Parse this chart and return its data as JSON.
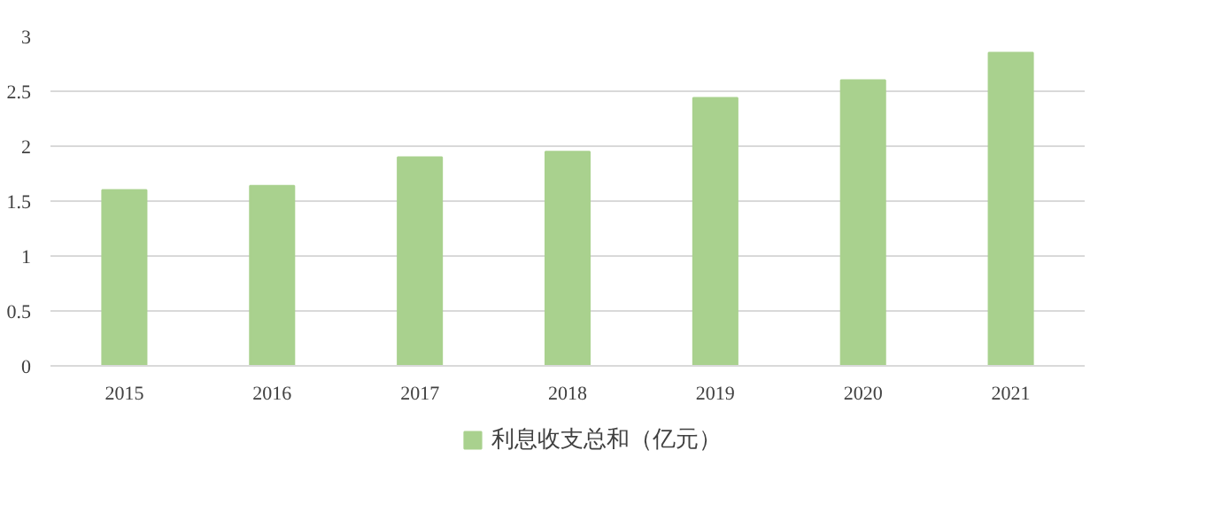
{
  "chart_data": {
    "type": "bar",
    "categories": [
      "2015",
      "2016",
      "2017",
      "2018",
      "2019",
      "2020",
      "2021"
    ],
    "series": [
      {
        "name": "利息收支总和（亿元）",
        "color": "#a9d18e",
        "values": [
          1.6,
          1.64,
          1.9,
          1.95,
          2.44,
          2.6,
          2.85
        ]
      }
    ],
    "ylim": [
      0,
      3
    ],
    "yticks": [
      0,
      0.5,
      1,
      1.5,
      2,
      2.5,
      3
    ],
    "grid": "y",
    "legend": "bottom"
  }
}
